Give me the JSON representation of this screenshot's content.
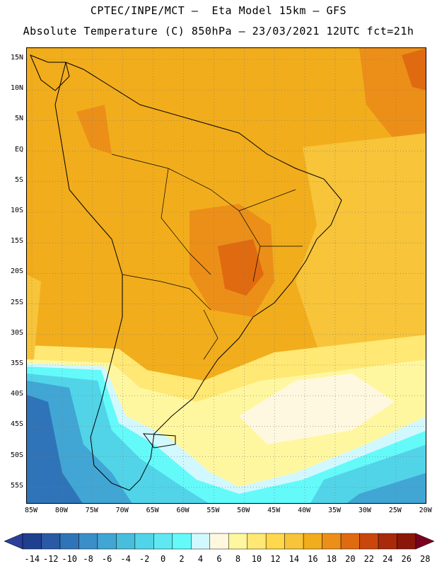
{
  "header": {
    "title_line1": "CPTEC/INPE/MCT –  Eta Model 15km – GFS",
    "title_line2": "Absolute Temperature (C) 850hPa – 23/03/2021 12UTC fct=21h"
  },
  "map": {
    "lat_labels": [
      "15N",
      "10N",
      "5N",
      "EQ",
      "5S",
      "10S",
      "15S",
      "20S",
      "25S",
      "30S",
      "35S",
      "40S",
      "45S",
      "50S",
      "55S"
    ],
    "lon_labels": [
      "85W",
      "80W",
      "75W",
      "70W",
      "65W",
      "60W",
      "55W",
      "50W",
      "45W",
      "40W",
      "35W",
      "30W",
      "25W",
      "20W"
    ],
    "border_color": "#000000"
  },
  "colorbar": {
    "labels": [
      "-14",
      "-12",
      "-10",
      "-8",
      "-6",
      "-4",
      "-2",
      "0",
      "2",
      "4",
      "6",
      "8",
      "10",
      "12",
      "14",
      "16",
      "18",
      "20",
      "22",
      "24",
      "26",
      "28"
    ],
    "colors": [
      "#1f3f8f",
      "#2a5aa6",
      "#2f74b8",
      "#3a8fc8",
      "#41a6d4",
      "#48bedc",
      "#52d4e8",
      "#5fe8f2",
      "#64fafa",
      "#d2f8ff",
      "#fff8e0",
      "#fff7a0",
      "#ffe873",
      "#ffd84d",
      "#f7c43a",
      "#f2ad1c",
      "#ec8f18",
      "#e06a10",
      "#c9470c",
      "#a82a0a",
      "#8a170a"
    ],
    "low_color": "#2a3f9a",
    "high_color": "#7a0020"
  },
  "field_colors": {
    "warm": "#f2ad1c",
    "hot": "#ec8f18",
    "hotter": "#e06a10",
    "mild": "#f7c43a",
    "yellow": "#ffe873",
    "pale": "#fff7a0",
    "cream": "#fff8e0",
    "icy": "#d2f8ff",
    "cyan": "#64fafa",
    "aqua": "#52d4e8",
    "cool": "#41a6d4",
    "cold": "#2f74b8",
    "colder": "#2a5aa6"
  }
}
